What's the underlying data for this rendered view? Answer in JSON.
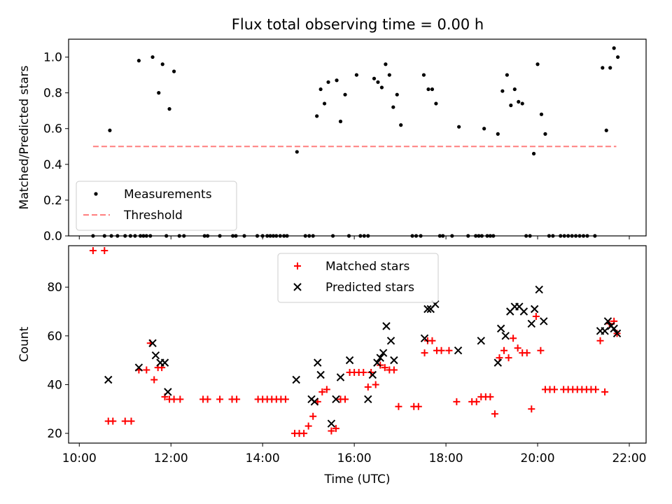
{
  "title": "Flux total observing time = 0.00 h",
  "chart_data": [
    {
      "type": "scatter",
      "ylabel": "Matched/Predicted stars",
      "xlabel": "",
      "xlim": [
        "10:00",
        "22:00"
      ],
      "ylim": [
        0,
        1.1
      ],
      "yticks": [
        "0.0",
        "0.2",
        "0.4",
        "0.6",
        "0.8",
        "1.0"
      ],
      "legend": {
        "position": "lower-left",
        "entries": [
          "Measurements",
          "Threshold"
        ]
      },
      "threshold": {
        "name": "Threshold",
        "value": 0.5,
        "x_start": "10:18",
        "x_end": "21:43",
        "color": "#ff7f7f",
        "style": "dashed"
      },
      "series": [
        {
          "name": "Measurements",
          "color": "#000000",
          "marker": "dot",
          "points": [
            [
              "10:18",
              0
            ],
            [
              "10:33",
              0
            ],
            [
              "10:40",
              0.59
            ],
            [
              "10:42",
              0
            ],
            [
              "10:50",
              0
            ],
            [
              "11:00",
              0
            ],
            [
              "11:07",
              0
            ],
            [
              "11:13",
              0
            ],
            [
              "11:18",
              0.98
            ],
            [
              "11:20",
              0
            ],
            [
              "11:24",
              0
            ],
            [
              "11:28",
              0
            ],
            [
              "11:33",
              0
            ],
            [
              "11:36",
              1.0
            ],
            [
              "11:44",
              0.8
            ],
            [
              "11:49",
              0.96
            ],
            [
              "11:54",
              0
            ],
            [
              "11:58",
              0.71
            ],
            [
              "12:04",
              0.92
            ],
            [
              "12:11",
              0
            ],
            [
              "12:17",
              0
            ],
            [
              "12:44",
              0
            ],
            [
              "12:48",
              0
            ],
            [
              "13:04",
              0
            ],
            [
              "13:21",
              0
            ],
            [
              "13:25",
              0
            ],
            [
              "13:36",
              0
            ],
            [
              "13:53",
              0
            ],
            [
              "14:00",
              0
            ],
            [
              "14:06",
              0
            ],
            [
              "14:10",
              0
            ],
            [
              "14:14",
              0
            ],
            [
              "14:18",
              0
            ],
            [
              "14:23",
              0
            ],
            [
              "14:28",
              0
            ],
            [
              "14:32",
              0
            ],
            [
              "14:45",
              0.47
            ],
            [
              "14:56",
              0
            ],
            [
              "15:01",
              0
            ],
            [
              "15:06",
              0
            ],
            [
              "15:11",
              0.67
            ],
            [
              "15:16",
              0.82
            ],
            [
              "15:21",
              0.74
            ],
            [
              "15:26",
              0.86
            ],
            [
              "15:32",
              0
            ],
            [
              "15:37",
              0.87
            ],
            [
              "15:42",
              0.64
            ],
            [
              "15:48",
              0.79
            ],
            [
              "15:53",
              0
            ],
            [
              "16:03",
              0.9
            ],
            [
              "16:08",
              0
            ],
            [
              "16:13",
              0
            ],
            [
              "16:18",
              0
            ],
            [
              "16:26",
              0.88
            ],
            [
              "16:31",
              0.86
            ],
            [
              "16:36",
              0.83
            ],
            [
              "16:41",
              0.96
            ],
            [
              "16:46",
              0.9
            ],
            [
              "16:51",
              0.72
            ],
            [
              "16:56",
              0.79
            ],
            [
              "17:01",
              0.62
            ],
            [
              "17:16",
              0
            ],
            [
              "17:21",
              0
            ],
            [
              "17:27",
              0
            ],
            [
              "17:31",
              0.9
            ],
            [
              "17:37",
              0.82
            ],
            [
              "17:42",
              0.82
            ],
            [
              "17:47",
              0.74
            ],
            [
              "17:52",
              0
            ],
            [
              "17:56",
              0
            ],
            [
              "18:08",
              0
            ],
            [
              "18:17",
              0.61
            ],
            [
              "18:29",
              0
            ],
            [
              "18:39",
              0
            ],
            [
              "18:43",
              0
            ],
            [
              "18:47",
              0
            ],
            [
              "18:50",
              0.6
            ],
            [
              "18:54",
              0
            ],
            [
              "18:58",
              0
            ],
            [
              "19:02",
              0
            ],
            [
              "19:08",
              0.57
            ],
            [
              "19:14",
              0.81
            ],
            [
              "19:20",
              0.9
            ],
            [
              "19:25",
              0.73
            ],
            [
              "19:30",
              0.82
            ],
            [
              "19:35",
              0.75
            ],
            [
              "19:40",
              0.74
            ],
            [
              "19:45",
              0
            ],
            [
              "19:50",
              0
            ],
            [
              "19:55",
              0.46
            ],
            [
              "20:00",
              0.96
            ],
            [
              "20:05",
              0.68
            ],
            [
              "20:10",
              0.57
            ],
            [
              "20:15",
              0
            ],
            [
              "20:20",
              0
            ],
            [
              "20:30",
              0
            ],
            [
              "20:35",
              0
            ],
            [
              "20:40",
              0
            ],
            [
              "20:45",
              0
            ],
            [
              "20:50",
              0
            ],
            [
              "20:55",
              0
            ],
            [
              "21:00",
              0
            ],
            [
              "21:05",
              0
            ],
            [
              "21:15",
              0
            ],
            [
              "21:25",
              0.94
            ],
            [
              "21:30",
              0.59
            ],
            [
              "21:35",
              0.94
            ],
            [
              "21:40",
              1.05
            ],
            [
              "21:45",
              1.0
            ]
          ]
        }
      ]
    },
    {
      "type": "scatter",
      "ylabel": "Count",
      "xlabel": "Time (UTC)",
      "xlim": [
        "10:00",
        "22:00"
      ],
      "ylim": [
        16,
        97
      ],
      "yticks": [
        "20",
        "40",
        "60",
        "80"
      ],
      "xticks": [
        "10:00",
        "12:00",
        "14:00",
        "16:00",
        "18:00",
        "20:00",
        "22:00"
      ],
      "legend": {
        "position": "top-center",
        "entries": [
          "Matched stars",
          "Predicted stars"
        ]
      },
      "series": [
        {
          "name": "Matched stars",
          "color": "#ff0000",
          "marker": "plus",
          "points": [
            [
              "10:18",
              95
            ],
            [
              "10:33",
              95
            ],
            [
              "10:38",
              25
            ],
            [
              "10:44",
              25
            ],
            [
              "11:00",
              25
            ],
            [
              "11:08",
              25
            ],
            [
              "11:18",
              46
            ],
            [
              "11:28",
              46
            ],
            [
              "11:33",
              57
            ],
            [
              "11:38",
              42
            ],
            [
              "11:43",
              47
            ],
            [
              "11:48",
              47
            ],
            [
              "11:52",
              35
            ],
            [
              "11:58",
              34
            ],
            [
              "12:04",
              34
            ],
            [
              "12:12",
              34
            ],
            [
              "12:42",
              34
            ],
            [
              "12:48",
              34
            ],
            [
              "13:04",
              34
            ],
            [
              "13:20",
              34
            ],
            [
              "13:26",
              34
            ],
            [
              "13:54",
              34
            ],
            [
              "14:00",
              34
            ],
            [
              "14:06",
              34
            ],
            [
              "14:12",
              34
            ],
            [
              "14:18",
              34
            ],
            [
              "14:24",
              34
            ],
            [
              "14:30",
              34
            ],
            [
              "14:42",
              20
            ],
            [
              "14:48",
              20
            ],
            [
              "14:54",
              20
            ],
            [
              "15:00",
              23
            ],
            [
              "15:06",
              27
            ],
            [
              "15:12",
              33
            ],
            [
              "15:18",
              37
            ],
            [
              "15:24",
              38
            ],
            [
              "15:30",
              21
            ],
            [
              "15:36",
              22
            ],
            [
              "15:42",
              34
            ],
            [
              "15:48",
              34
            ],
            [
              "15:54",
              45
            ],
            [
              "16:00",
              45
            ],
            [
              "16:06",
              45
            ],
            [
              "16:12",
              45
            ],
            [
              "16:18",
              39
            ],
            [
              "16:22",
              45
            ],
            [
              "16:28",
              40
            ],
            [
              "16:34",
              48
            ],
            [
              "16:40",
              47
            ],
            [
              "16:46",
              46
            ],
            [
              "16:52",
              46
            ],
            [
              "16:58",
              31
            ],
            [
              "17:18",
              31
            ],
            [
              "17:24",
              31
            ],
            [
              "17:32",
              53
            ],
            [
              "17:36",
              58
            ],
            [
              "17:42",
              58
            ],
            [
              "17:48",
              54
            ],
            [
              "17:54",
              54
            ],
            [
              "18:04",
              54
            ],
            [
              "18:14",
              33
            ],
            [
              "18:34",
              33
            ],
            [
              "18:40",
              33
            ],
            [
              "18:46",
              35
            ],
            [
              "18:52",
              35
            ],
            [
              "18:58",
              35
            ],
            [
              "19:04",
              28
            ],
            [
              "19:10",
              51
            ],
            [
              "19:16",
              54
            ],
            [
              "19:22",
              51
            ],
            [
              "19:28",
              59
            ],
            [
              "19:34",
              55
            ],
            [
              "19:40",
              53
            ],
            [
              "19:46",
              53
            ],
            [
              "19:52",
              30
            ],
            [
              "19:58",
              68
            ],
            [
              "20:04",
              54
            ],
            [
              "20:10",
              38
            ],
            [
              "20:16",
              38
            ],
            [
              "20:22",
              38
            ],
            [
              "20:34",
              38
            ],
            [
              "20:40",
              38
            ],
            [
              "20:46",
              38
            ],
            [
              "20:52",
              38
            ],
            [
              "20:58",
              38
            ],
            [
              "21:04",
              38
            ],
            [
              "21:10",
              38
            ],
            [
              "21:16",
              38
            ],
            [
              "21:22",
              58
            ],
            [
              "21:28",
              37
            ],
            [
              "21:34",
              65
            ],
            [
              "21:40",
              66
            ],
            [
              "21:44",
              61
            ]
          ]
        },
        {
          "name": "Predicted stars",
          "color": "#000000",
          "marker": "x",
          "points": [
            [
              "10:38",
              42
            ],
            [
              "11:18",
              47
            ],
            [
              "11:36",
              57
            ],
            [
              "11:40",
              52
            ],
            [
              "11:46",
              49
            ],
            [
              "11:52",
              49
            ],
            [
              "11:56",
              37
            ],
            [
              "14:44",
              42
            ],
            [
              "15:04",
              34
            ],
            [
              "15:08",
              33
            ],
            [
              "15:12",
              49
            ],
            [
              "15:16",
              44
            ],
            [
              "15:30",
              24
            ],
            [
              "15:36",
              34
            ],
            [
              "15:42",
              43
            ],
            [
              "15:54",
              50
            ],
            [
              "16:18",
              34
            ],
            [
              "16:24",
              44
            ],
            [
              "16:30",
              49
            ],
            [
              "16:34",
              51
            ],
            [
              "16:38",
              53
            ],
            [
              "16:42",
              64
            ],
            [
              "16:48",
              58
            ],
            [
              "16:52",
              50
            ],
            [
              "17:32",
              59
            ],
            [
              "17:36",
              71
            ],
            [
              "17:40",
              71
            ],
            [
              "17:46",
              73
            ],
            [
              "18:16",
              54
            ],
            [
              "18:46",
              58
            ],
            [
              "19:08",
              49
            ],
            [
              "19:12",
              63
            ],
            [
              "19:18",
              60
            ],
            [
              "19:24",
              70
            ],
            [
              "19:30",
              72
            ],
            [
              "19:36",
              72
            ],
            [
              "19:42",
              70
            ],
            [
              "19:52",
              65
            ],
            [
              "19:56",
              71
            ],
            [
              "20:02",
              79
            ],
            [
              "20:08",
              66
            ],
            [
              "21:22",
              62
            ],
            [
              "21:28",
              62
            ],
            [
              "21:32",
              66
            ],
            [
              "21:36",
              64
            ],
            [
              "21:40",
              63
            ],
            [
              "21:44",
              61
            ]
          ]
        }
      ]
    }
  ]
}
